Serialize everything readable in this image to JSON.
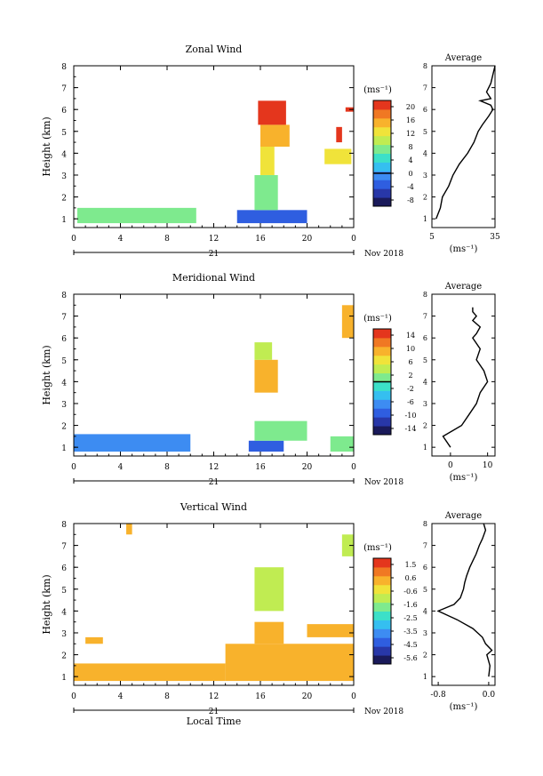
{
  "chart_data": [
    {
      "type": "heatmap",
      "title": "Zonal Wind",
      "ylabel": "Height (km)",
      "x_ticks": [
        "0",
        "4",
        "8",
        "12",
        "16",
        "20",
        "0"
      ],
      "y_ticks": [
        "1",
        "2",
        "3",
        "4",
        "5",
        "6",
        "7",
        "8"
      ],
      "date_day": "21",
      "date_month": "Nov 2018",
      "colorbar_unit": "(ms⁻¹)",
      "colorbar_ticks": [
        "20",
        "16",
        "12",
        "8",
        "4",
        "0",
        "-4",
        "-8"
      ],
      "colorbar_range": [
        -10,
        22
      ],
      "colorbar_marker": 0,
      "patches": [
        {
          "x0": 0.3,
          "x1": 10.5,
          "y0": 0.8,
          "y1": 1.5,
          "v": 6
        },
        {
          "x0": 14.0,
          "x1": 20.0,
          "y0": 0.8,
          "y1": 1.4,
          "v": -3
        },
        {
          "x0": 15.5,
          "x1": 17.5,
          "y0": 1.4,
          "y1": 3.0,
          "v": 7
        },
        {
          "x0": 16.0,
          "x1": 17.2,
          "y0": 3.0,
          "y1": 4.3,
          "v": 12
        },
        {
          "x0": 16.0,
          "x1": 18.5,
          "y0": 4.3,
          "y1": 5.3,
          "v": 16
        },
        {
          "x0": 15.8,
          "x1": 18.2,
          "y0": 5.3,
          "y1": 6.4,
          "v": 20
        },
        {
          "x0": 21.5,
          "x1": 23.8,
          "y0": 3.5,
          "y1": 4.2,
          "v": 12
        },
        {
          "x0": 22.5,
          "x1": 23.0,
          "y0": 4.5,
          "y1": 5.2,
          "v": 20
        },
        {
          "x0": 23.3,
          "x1": 24.0,
          "y0": 5.9,
          "y1": 6.1,
          "v": 22
        }
      ],
      "avg_profile": {
        "title": "Average",
        "xlim": [
          5,
          35
        ],
        "x_ticks": [
          "5",
          "35"
        ],
        "xlabel": "(ms⁻¹)",
        "x": [
          7,
          9,
          10,
          13,
          15,
          18,
          22,
          25,
          27,
          29,
          32,
          34,
          33,
          28,
          33,
          31,
          33,
          35
        ],
        "y": [
          1.0,
          1.5,
          2.0,
          2.5,
          3.0,
          3.5,
          4.0,
          4.5,
          5.0,
          5.3,
          5.7,
          6.0,
          6.2,
          6.4,
          6.5,
          6.8,
          7.2,
          8.0
        ]
      }
    },
    {
      "type": "heatmap",
      "title": "Meridional Wind",
      "ylabel": "Height (km)",
      "x_ticks": [
        "0",
        "4",
        "8",
        "12",
        "16",
        "20",
        "0"
      ],
      "y_ticks": [
        "1",
        "2",
        "3",
        "4",
        "5",
        "6",
        "7",
        "8"
      ],
      "date_day": "21",
      "date_month": "Nov 2018",
      "colorbar_unit": "(ms⁻¹)",
      "colorbar_ticks": [
        "14",
        "10",
        "6",
        "2",
        "-2",
        "-6",
        "-10",
        "-14"
      ],
      "colorbar_range": [
        -16,
        16
      ],
      "colorbar_marker": 0,
      "patches": [
        {
          "x0": 0.0,
          "x1": 10.0,
          "y0": 0.8,
          "y1": 1.6,
          "v": -6
        },
        {
          "x0": 15.0,
          "x1": 18.0,
          "y0": 0.8,
          "y1": 1.3,
          "v": -10
        },
        {
          "x0": 15.5,
          "x1": 20.0,
          "y0": 1.3,
          "y1": 2.2,
          "v": 2
        },
        {
          "x0": 15.5,
          "x1": 17.5,
          "y0": 3.5,
          "y1": 5.0,
          "v": 10
        },
        {
          "x0": 15.5,
          "x1": 17.0,
          "y0": 5.0,
          "y1": 5.8,
          "v": 4
        },
        {
          "x0": 23.0,
          "x1": 24.0,
          "y0": 6.0,
          "y1": 7.5,
          "v": 8
        },
        {
          "x0": 22.0,
          "x1": 24.0,
          "y0": 0.8,
          "y1": 1.5,
          "v": 2
        }
      ],
      "avg_profile": {
        "title": "Average",
        "xlim": [
          -5,
          12
        ],
        "x_ticks": [
          "0",
          "10"
        ],
        "xlabel": "(ms⁻¹)",
        "x": [
          0,
          -2,
          3,
          5,
          7,
          8,
          10,
          9,
          7,
          8,
          6,
          7,
          8,
          6,
          7,
          6,
          6
        ],
        "y": [
          1.0,
          1.5,
          2.0,
          2.5,
          3.0,
          3.5,
          4.0,
          4.5,
          5.0,
          5.5,
          6.0,
          6.2,
          6.5,
          6.8,
          7.0,
          7.2,
          7.4
        ]
      }
    },
    {
      "type": "heatmap",
      "title": "Vertical Wind",
      "ylabel": "Height (km)",
      "xlabel": "Local Time",
      "x_ticks": [
        "0",
        "4",
        "8",
        "12",
        "16",
        "20",
        "0"
      ],
      "y_ticks": [
        "1",
        "2",
        "3",
        "4",
        "5",
        "6",
        "7",
        "8"
      ],
      "date_day": "21",
      "date_month": "Nov 2018",
      "colorbar_unit": "(ms⁻¹)",
      "colorbar_ticks": [
        "1.5",
        "0.6",
        "-0.6",
        "-1.6",
        "-2.5",
        "-3.5",
        "-4.5",
        "-5.6"
      ],
      "colorbar_range": [
        -6.0,
        2.0
      ],
      "colorbar_marker": null,
      "patches": [
        {
          "x0": 0.0,
          "x1": 13.0,
          "y0": 0.8,
          "y1": 1.6,
          "v": 0.6
        },
        {
          "x0": 13.0,
          "x1": 24.0,
          "y0": 0.8,
          "y1": 2.5,
          "v": 0.6
        },
        {
          "x0": 15.5,
          "x1": 18.0,
          "y0": 2.5,
          "y1": 3.5,
          "v": 0.3
        },
        {
          "x0": 15.5,
          "x1": 18.0,
          "y0": 4.0,
          "y1": 6.0,
          "v": -0.8
        },
        {
          "x0": 20.0,
          "x1": 24.0,
          "y0": 2.8,
          "y1": 3.4,
          "v": 0.3
        },
        {
          "x0": 23.0,
          "x1": 24.0,
          "y0": 6.5,
          "y1": 7.5,
          "v": -0.8
        },
        {
          "x0": 1.0,
          "x1": 2.5,
          "y0": 2.5,
          "y1": 2.8,
          "v": 0.6
        },
        {
          "x0": 4.5,
          "x1": 5.0,
          "y0": 7.5,
          "y1": 8.0,
          "v": 0.6
        }
      ],
      "avg_profile": {
        "title": "Average",
        "xlim": [
          -0.9,
          0.1
        ],
        "x_ticks": [
          "-0.8",
          "0.0"
        ],
        "xlabel": "(ms⁻¹)",
        "x": [
          0.0,
          0.02,
          -0.03,
          0.05,
          -0.05,
          -0.1,
          -0.25,
          -0.5,
          -0.8,
          -0.55,
          -0.45,
          -0.4,
          -0.38,
          -0.35,
          -0.3,
          -0.25,
          -0.2,
          -0.15,
          -0.1,
          -0.05,
          -0.08
        ],
        "y": [
          1.0,
          1.5,
          2.0,
          2.2,
          2.5,
          2.8,
          3.2,
          3.6,
          4.0,
          4.3,
          4.6,
          5.0,
          5.3,
          5.6,
          6.0,
          6.3,
          6.6,
          7.0,
          7.3,
          7.7,
          8.0
        ]
      }
    }
  ],
  "palette": [
    "#1a1a5a",
    "#2837a8",
    "#2f5ee0",
    "#3d8cf2",
    "#35bff0",
    "#3ce0c8",
    "#7eea8e",
    "#c0ec52",
    "#f0e33a",
    "#f8b22c",
    "#f07823",
    "#e4361d"
  ]
}
